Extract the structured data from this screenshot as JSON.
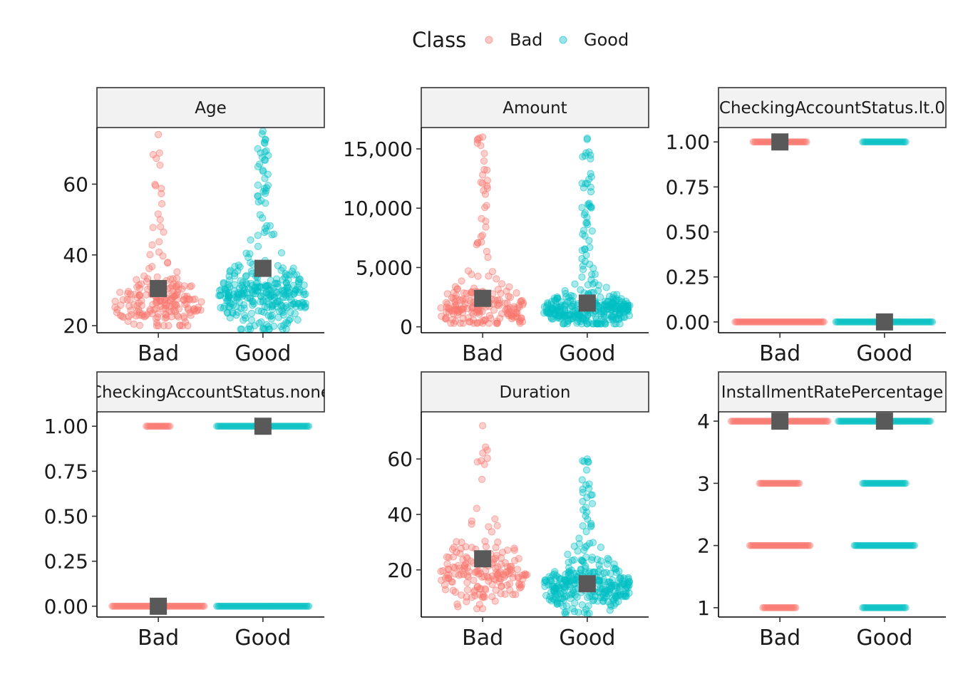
{
  "legend": {
    "title": "Class",
    "placement": "top",
    "items": [
      {
        "label": "Bad",
        "color": "#F8766D"
      },
      {
        "label": "Good",
        "color": "#00BFC4"
      }
    ]
  },
  "colors": {
    "mean_marker": "#595959",
    "strip_fill": "#F2F2F2",
    "bad": "#F8766D",
    "good": "#00BFC4"
  },
  "chart_data": [
    {
      "type": "scatter",
      "title": "Age",
      "categories": [
        "Bad",
        "Good"
      ],
      "ylim": [
        18,
        76
      ],
      "yticks": [
        20,
        40,
        60
      ],
      "ytick_labels": [
        "20",
        "40",
        "60"
      ],
      "mean": [
        30.5,
        36.2
      ],
      "dist": {
        "type": "cont",
        "min": [
          20,
          19
        ],
        "max": [
          74,
          75
        ],
        "peak": [
          26,
          28
        ],
        "spread": [
          7,
          10
        ],
        "n": [
          190,
          320
        ]
      }
    },
    {
      "type": "scatter",
      "title": "Amount",
      "categories": [
        "Bad",
        "Good"
      ],
      "ylim": [
        -500,
        16800
      ],
      "yticks": [
        0,
        5000,
        10000,
        15000
      ],
      "ytick_labels": [
        "0",
        "5,000",
        "10,000",
        "15,000"
      ],
      "mean": [
        2400,
        2000
      ],
      "dist": {
        "type": "cont",
        "min": [
          300,
          250
        ],
        "max": [
          16000,
          15900
        ],
        "peak": [
          1400,
          1400
        ],
        "spread": [
          2200,
          1500
        ],
        "n": [
          200,
          330
        ]
      }
    },
    {
      "type": "scatter",
      "title": "CheckingAccountStatus.lt.0",
      "categories": [
        "Bad",
        "Good"
      ],
      "ylim": [
        -0.06,
        1.08
      ],
      "yticks": [
        0,
        0.25,
        0.5,
        0.75,
        1
      ],
      "ytick_labels": [
        "0.00",
        "0.25",
        "0.50",
        "0.75",
        "1.00"
      ],
      "mean": [
        1.0,
        0.0
      ],
      "dist": {
        "type": "disc",
        "levels": [
          0,
          1
        ],
        "widths": [
          [
            0.92,
            0.55
          ],
          [
            1.0,
            0.45
          ]
        ]
      }
    },
    {
      "type": "scatter",
      "title": "CheckingAccountStatus.none",
      "categories": [
        "Bad",
        "Good"
      ],
      "ylim": [
        -0.06,
        1.08
      ],
      "yticks": [
        0,
        0.25,
        0.5,
        0.75,
        1
      ],
      "ytick_labels": [
        "0.00",
        "0.25",
        "0.50",
        "0.75",
        "1.00"
      ],
      "mean": [
        0.0,
        1.0
      ],
      "dist": {
        "type": "disc",
        "levels": [
          0,
          1
        ],
        "widths": [
          [
            0.95,
            0.25
          ],
          [
            0.95,
            0.95
          ]
        ]
      }
    },
    {
      "type": "scatter",
      "title": "Duration",
      "categories": [
        "Bad",
        "Good"
      ],
      "ylim": [
        3,
        77
      ],
      "yticks": [
        20,
        40,
        60
      ],
      "ytick_labels": [
        "20",
        "40",
        "60"
      ],
      "mean": [
        24,
        15
      ],
      "dist": {
        "type": "cont",
        "min": [
          6,
          4
        ],
        "max": [
          72,
          60
        ],
        "peak": [
          18,
          14
        ],
        "spread": [
          12,
          9
        ],
        "n": [
          180,
          300
        ]
      }
    },
    {
      "type": "scatter",
      "title": "InstallmentRatePercentage",
      "categories": [
        "Bad",
        "Good"
      ],
      "ylim": [
        0.85,
        4.15
      ],
      "yticks": [
        1,
        2,
        3,
        4
      ],
      "ytick_labels": [
        "1",
        "2",
        "3",
        "4"
      ],
      "mean": [
        4.0,
        4.0
      ],
      "dist": {
        "type": "disc",
        "levels": [
          1,
          2,
          3,
          4
        ],
        "widths": [
          [
            0.35,
            0.62,
            0.42,
            1.0
          ],
          [
            0.45,
            0.62,
            0.45,
            0.95
          ]
        ]
      }
    }
  ]
}
